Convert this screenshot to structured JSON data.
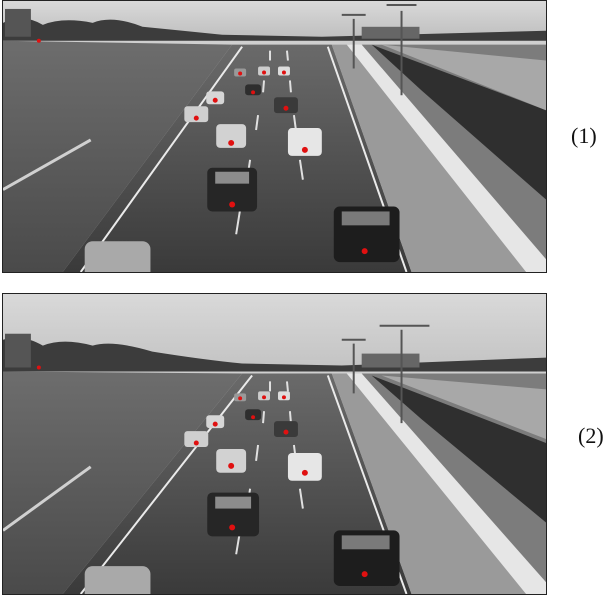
{
  "figure": {
    "panels": [
      {
        "label": "(1)",
        "marker_color": "#e01010",
        "image_tone": "grayscale"
      },
      {
        "label": "(2)",
        "marker_color": "#e01010",
        "image_tone": "grayscale"
      }
    ]
  }
}
